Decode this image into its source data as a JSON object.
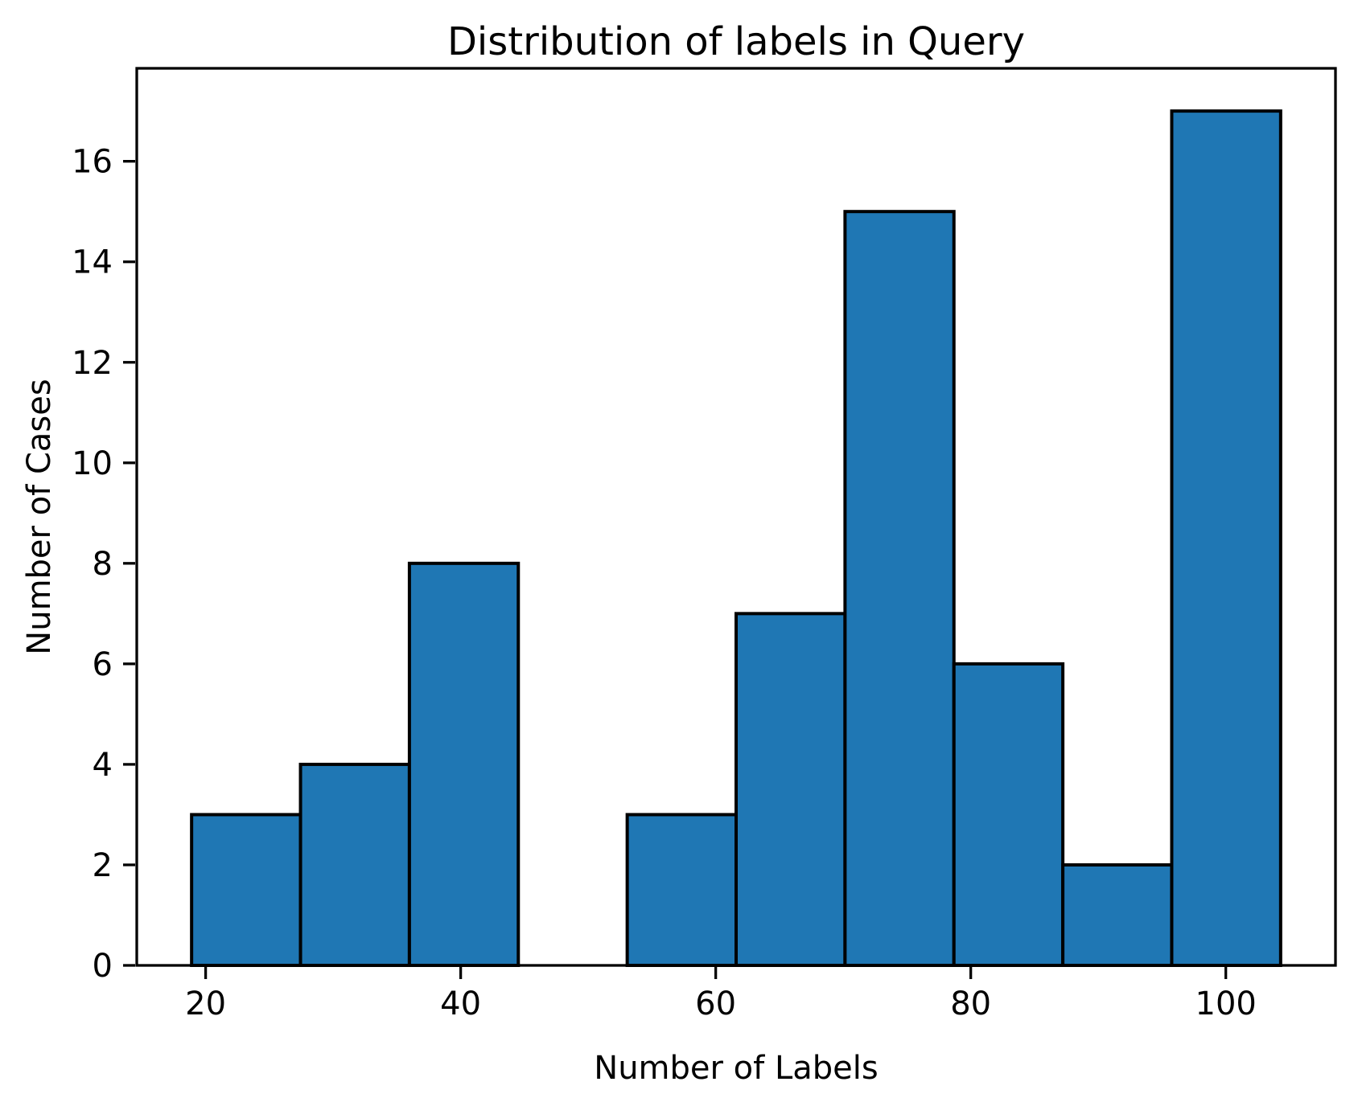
{
  "chart_data": {
    "type": "bar",
    "subtype": "histogram",
    "title": "Distribution of labels in Query",
    "xlabel": "Number of Labels",
    "ylabel": "Number of Cases",
    "bin_edges": [
      18.9,
      27.44,
      35.98,
      44.52,
      53.06,
      61.6,
      70.14,
      78.68,
      87.22,
      95.76,
      104.3
    ],
    "counts": [
      3,
      4,
      8,
      0,
      3,
      7,
      15,
      6,
      2,
      17
    ],
    "x_ticks": [
      20,
      40,
      60,
      80,
      100
    ],
    "y_ticks": [
      0,
      2,
      4,
      6,
      8,
      10,
      12,
      14,
      16
    ],
    "xlim": [
      14.6,
      108.6
    ],
    "ylim": [
      0,
      17.85
    ],
    "grid": false,
    "legend_position": "none",
    "bar_color": "#1f77b4",
    "bar_edge_color": "#000000",
    "axis_color": "#000000",
    "background_color": "#ffffff"
  }
}
